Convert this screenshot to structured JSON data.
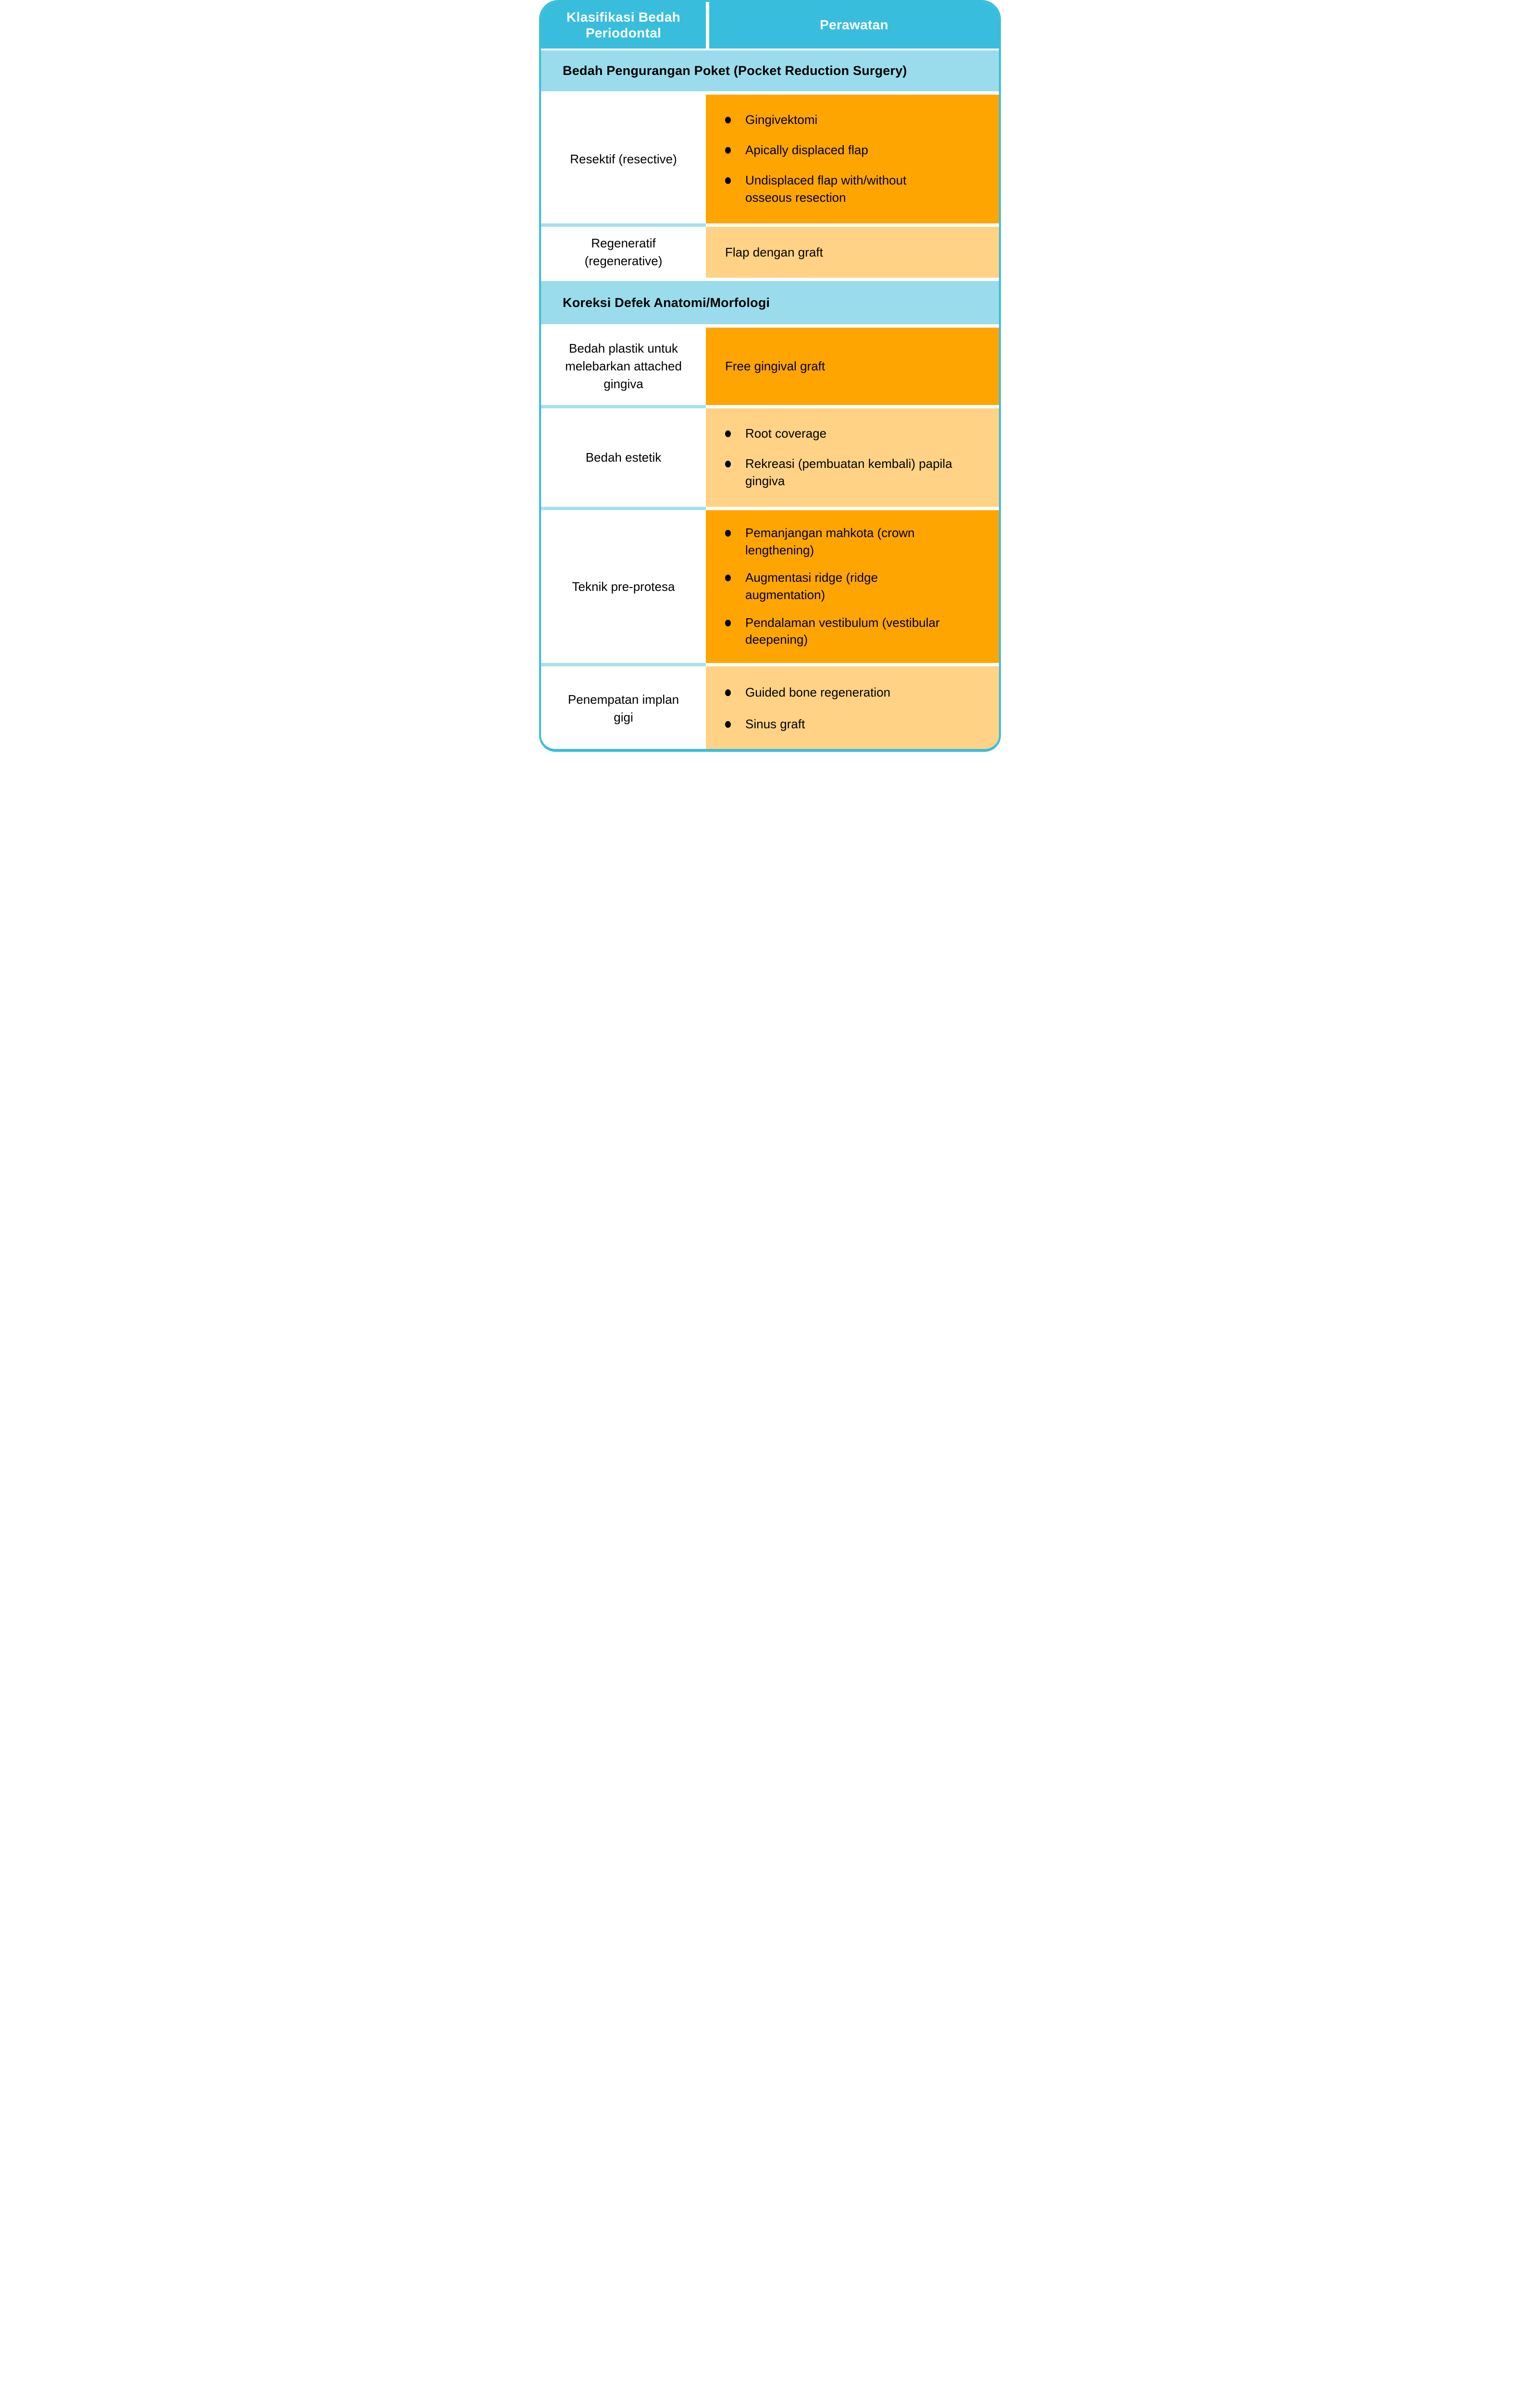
{
  "colors": {
    "teal": "#38BEDC",
    "light_blue": "#9ADCEB",
    "divider_blue": "#A6E0ED",
    "orange": "#FFA502",
    "light_orange": "#FFD285",
    "header_text": "#FFFFFF",
    "body_text": "#000000"
  },
  "header": {
    "classification_label": "Klasifikasi Bedah\nPeriodontal",
    "treatment_label": "Perawatan"
  },
  "sections": [
    {
      "title": "Bedah Pengurangan Poket (Pocket Reduction Surgery)"
    },
    {
      "title": "Koreksi Defek Anatomi/Morfologi"
    }
  ],
  "rows": [
    {
      "classification": "Resektif (resective)",
      "treatments": [
        "Gingivektomi",
        "Apically displaced flap",
        "Undisplaced flap with/without\nosseous resection"
      ]
    },
    {
      "classification": "Regeneratif\n(regenerative)",
      "treatment": "Flap dengan graft"
    },
    {
      "classification": "Bedah plastik untuk\nmelebarkan attached\ngingiva",
      "treatment": "Free gingival graft"
    },
    {
      "classification": "Bedah estetik",
      "treatments": [
        "Root coverage",
        "Rekreasi (pembuatan kembali) papila\ngingiva"
      ]
    },
    {
      "classification": "Teknik pre-protesa",
      "treatments": [
        "Pemanjangan mahkota (crown\nlengthening)",
        "Augmentasi ridge (ridge\naugmentation)",
        "Pendalaman vestibulum (vestibular\ndeepening)"
      ]
    },
    {
      "classification": "Penempatan implan\ngigi",
      "treatments": [
        "Guided bone regeneration",
        "Sinus graft"
      ]
    }
  ]
}
